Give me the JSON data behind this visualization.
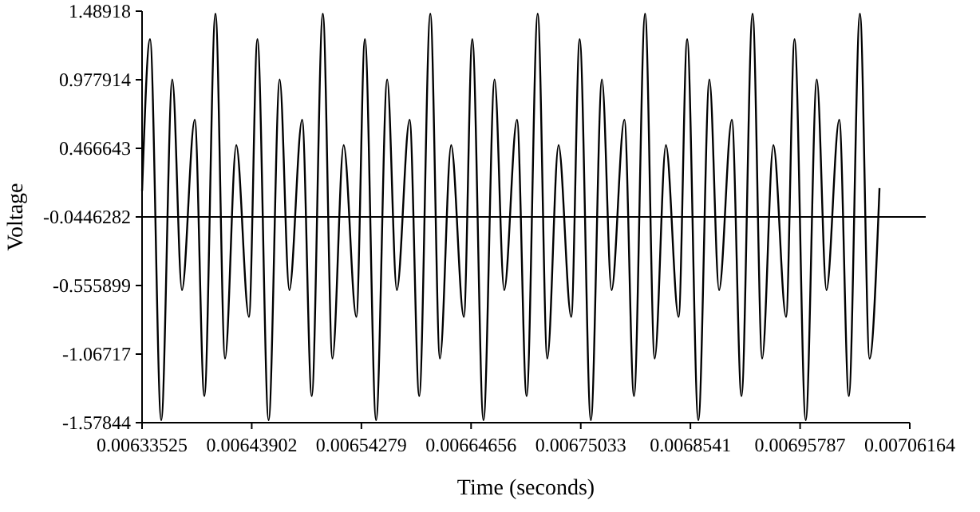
{
  "chart_data": {
    "type": "line",
    "xlabel": "Time (seconds)",
    "ylabel": "Voltage",
    "xlim": [
      0.00633525,
      0.00706164
    ],
    "xticks": [
      0.00633525,
      0.00643902,
      0.00654279,
      0.00664656,
      0.00675033,
      0.0068541,
      0.00695787,
      0.00706164
    ],
    "ylim": [
      -1.57844,
      1.48918
    ],
    "yticks": [
      -1.57844,
      -1.06717,
      -0.555899,
      -0.0446282,
      0.466643,
      0.977914,
      1.48918
    ],
    "grid": false,
    "marker": "none",
    "line_style": "solid",
    "ref_lines": [
      {
        "axis": "y",
        "value": -0.0446282,
        "color": "#000000"
      }
    ],
    "series": [
      {
        "color": "#000000",
        "x": [
          0.0063353,
          0.0063428,
          0.0063534,
          0.0063639,
          0.006373,
          0.0063851,
          0.0063942,
          0.0064047,
          0.0064138,
          0.0064244,
          0.0064364,
          0.0064444,
          0.006455,
          0.0064655,
          0.0064746,
          0.0064867,
          0.0064958,
          0.0065063,
          0.0065154,
          0.006526,
          0.006538,
          0.0065461,
          0.0065567,
          0.0065672,
          0.0065763,
          0.0065884,
          0.0065975,
          0.006608,
          0.0066171,
          0.0066277,
          0.0066397,
          0.0066477,
          0.0066583,
          0.0066688,
          0.0066779,
          0.00669,
          0.0066991,
          0.0067096,
          0.0067187,
          0.0067293,
          0.0067413,
          0.0067493,
          0.0067599,
          0.0067704,
          0.0067795,
          0.0067916,
          0.0068007,
          0.0068112,
          0.0068203,
          0.0068309,
          0.0068429,
          0.006851,
          0.0068616,
          0.0068721,
          0.0068812,
          0.0068933,
          0.0069024,
          0.0069129,
          0.006922,
          0.0069326,
          0.0069446,
          0.0069526,
          0.0069632,
          0.0069737,
          0.0069828,
          0.0069949,
          0.007004,
          0.0070145,
          0.0070236,
          0.007033
        ],
        "values": [
          0.15,
          1.28,
          -1.56,
          0.98,
          -0.59,
          0.68,
          -1.38,
          1.47,
          -1.1,
          0.49,
          -0.79,
          1.28,
          -1.56,
          0.98,
          -0.59,
          0.68,
          -1.38,
          1.47,
          -1.1,
          0.49,
          -0.79,
          1.28,
          -1.56,
          0.98,
          -0.59,
          0.68,
          -1.38,
          1.47,
          -1.1,
          0.49,
          -0.79,
          1.28,
          -1.56,
          0.98,
          -0.59,
          0.68,
          -1.38,
          1.47,
          -1.1,
          0.49,
          -0.79,
          1.28,
          -1.56,
          0.98,
          -0.59,
          0.68,
          -1.38,
          1.47,
          -1.1,
          0.49,
          -0.79,
          1.28,
          -1.56,
          0.98,
          -0.59,
          0.68,
          -1.38,
          1.47,
          -1.1,
          0.49,
          -0.79,
          1.28,
          -1.56,
          0.98,
          -0.59,
          0.68,
          -1.38,
          1.47,
          -1.1,
          0.17
        ]
      }
    ]
  }
}
